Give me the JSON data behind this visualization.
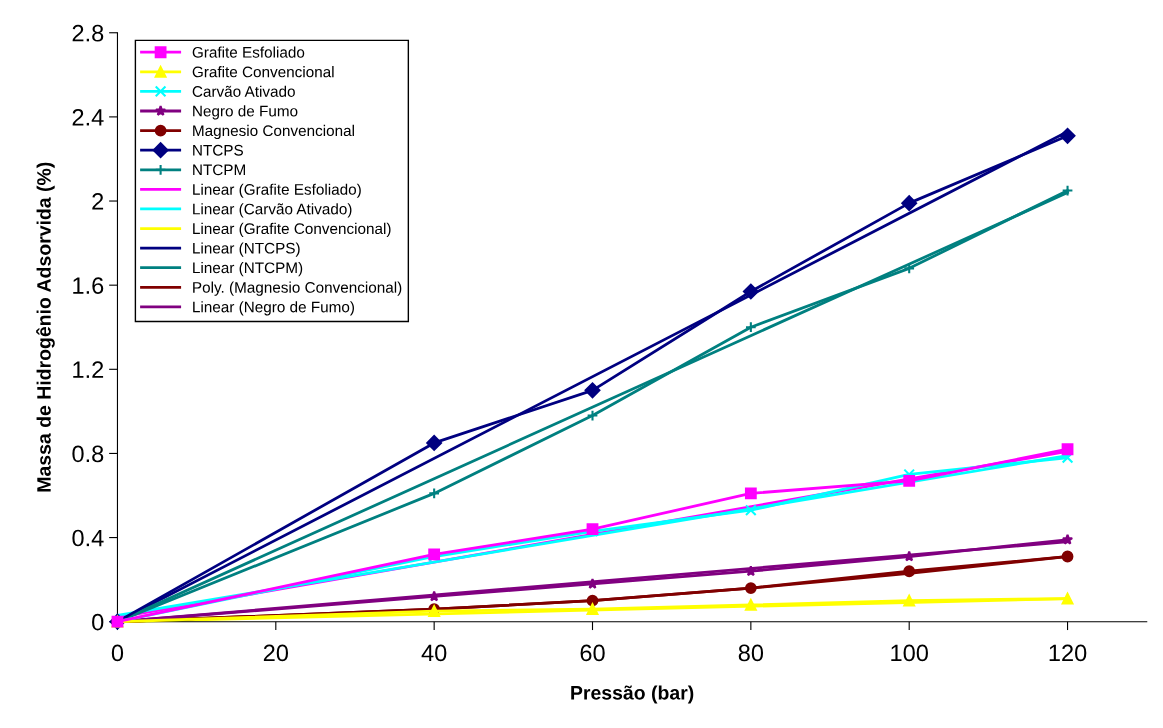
{
  "chart_data": {
    "type": "line",
    "xlabel": "Pressão (bar)",
    "ylabel": "Massa de Hidrogênio Adsorvida (%)",
    "x": [
      0,
      40,
      60,
      80,
      100,
      120
    ],
    "xlim": [
      0,
      130
    ],
    "xticks": [
      0,
      20,
      40,
      60,
      80,
      100,
      120
    ],
    "ylim": [
      0,
      2.8
    ],
    "yticks": [
      0,
      0.4,
      0.8,
      1.2,
      1.6,
      2,
      2.4,
      2.8
    ],
    "grid": false,
    "legend": "top left",
    "series": [
      {
        "name": "Grafite Esfoliado",
        "color": "#ff00ff",
        "marker": "square",
        "values": [
          0,
          0.32,
          0.44,
          0.61,
          0.67,
          0.82
        ]
      },
      {
        "name": "Grafite Convencional",
        "color": "#ffff00",
        "marker": "triangle",
        "values": [
          0,
          0.05,
          0.06,
          0.08,
          0.1,
          0.11
        ]
      },
      {
        "name": "Carvão Ativado",
        "color": "#00ffff",
        "marker": "cross",
        "values": [
          0,
          0.31,
          0.43,
          0.53,
          0.7,
          0.78
        ]
      },
      {
        "name": "Negro de Fumo",
        "color": "#800080",
        "marker": "star",
        "values": [
          0,
          0.12,
          0.18,
          0.24,
          0.31,
          0.39
        ]
      },
      {
        "name": "Magnesio Convencional",
        "color": "#800000",
        "marker": "circle",
        "values": [
          0,
          0.06,
          0.1,
          0.16,
          0.24,
          0.31
        ]
      },
      {
        "name": "NTCPS",
        "color": "#000080",
        "marker": "diamond",
        "values": [
          0,
          0.85,
          1.1,
          1.57,
          1.99,
          2.31
        ]
      },
      {
        "name": "NTCPM",
        "color": "#008080",
        "marker": "plus",
        "values": [
          0,
          0.61,
          0.98,
          1.4,
          1.68,
          2.05
        ]
      },
      {
        "name": "Linear (Grafite Esfoliado)",
        "color": "#ff00ff",
        "x": [
          0,
          120
        ],
        "values": [
          0.02,
          0.81
        ]
      },
      {
        "name": "Linear (Carvão Ativado)",
        "color": "#00ffff",
        "x": [
          0,
          120
        ],
        "values": [
          0.03,
          0.79
        ]
      },
      {
        "name": "Linear (Grafite Convencional)",
        "color": "#ffff00",
        "x": [
          0,
          120
        ],
        "values": [
          0,
          0.11
        ]
      },
      {
        "name": "Linear (NTCPS)",
        "color": "#000080",
        "x": [
          0,
          120
        ],
        "values": [
          0,
          2.33
        ]
      },
      {
        "name": "Linear (NTCPM)",
        "color": "#008080",
        "x": [
          0,
          120
        ],
        "values": [
          0,
          2.04
        ]
      },
      {
        "name": "Poly. (Magnesio Convencional)",
        "color": "#800000",
        "x": [
          0,
          40,
          60,
          80,
          100,
          120
        ],
        "values": [
          0,
          0.06,
          0.1,
          0.16,
          0.23,
          0.31
        ]
      },
      {
        "name": "Linear (Negro de Fumo)",
        "color": "#800080",
        "x": [
          0,
          120
        ],
        "values": [
          0,
          0.38
        ]
      }
    ]
  }
}
